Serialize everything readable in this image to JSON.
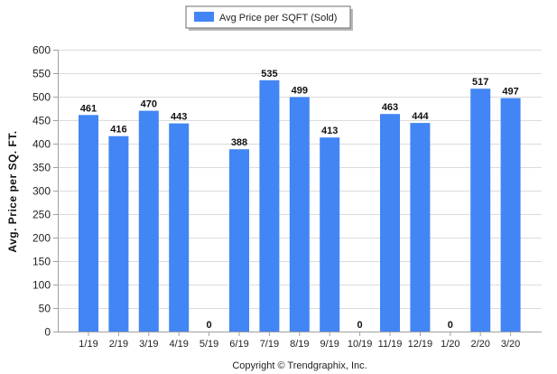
{
  "chart_data": {
    "type": "bar",
    "categories": [
      "1/19",
      "2/19",
      "3/19",
      "4/19",
      "5/19",
      "6/19",
      "7/19",
      "8/19",
      "9/19",
      "10/19",
      "11/19",
      "12/19",
      "1/20",
      "2/20",
      "3/20"
    ],
    "series": [
      {
        "name": "Avg Price per SQFT (Sold)",
        "values": [
          461,
          416,
          470,
          443,
          0,
          388,
          535,
          499,
          413,
          0,
          463,
          444,
          0,
          517,
          497
        ],
        "color": "#4285f4"
      }
    ],
    "title": "",
    "xlabel": "",
    "ylabel": "Avg. Price per SQ. FT.",
    "ylim": [
      0,
      600
    ],
    "yticks": [
      0,
      50,
      100,
      150,
      200,
      250,
      300,
      350,
      400,
      450,
      500,
      550,
      600
    ],
    "grid": true,
    "legend_position": "top-center"
  },
  "footer": "Copyright © Trendgraphix, Inc."
}
